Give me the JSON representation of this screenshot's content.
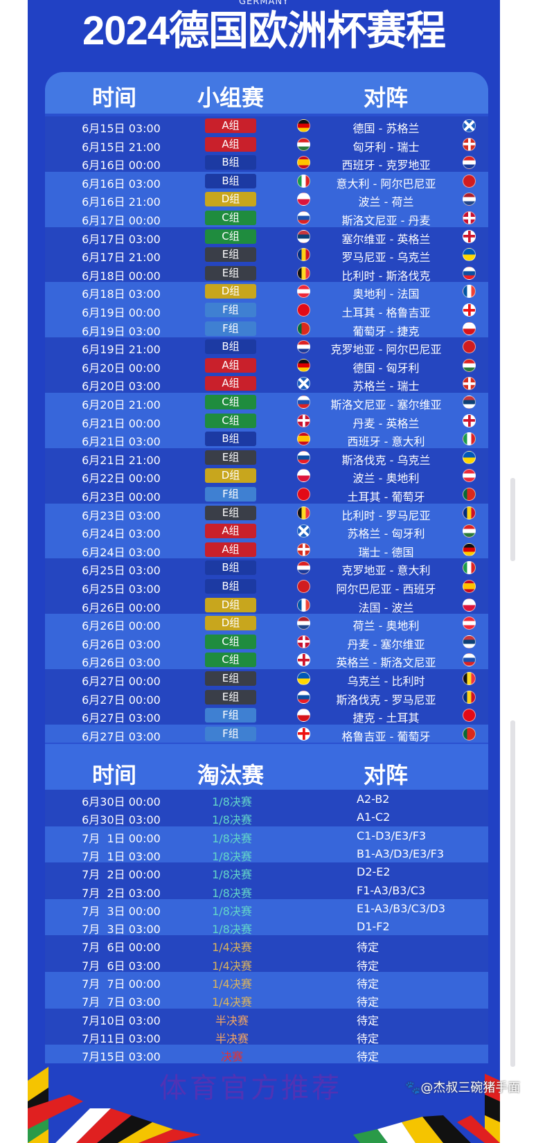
{
  "header": {
    "subtitle": "GERMANY",
    "title": "2024德国欧洲杯赛程"
  },
  "group_table": {
    "headers": [
      "时间",
      "小组赛",
      "对阵"
    ]
  },
  "group_colors": {
    "A组": "#c9202b",
    "B组": "#1c3aa3",
    "C组": "#1f8c3e",
    "D组": "#c8a61d",
    "E组": "#3a3e48",
    "F组": "#3f80d2"
  },
  "group_matches": [
    {
      "time": "6月15日 03:00",
      "group": "A组",
      "home": "德国",
      "away": "苏格兰"
    },
    {
      "time": "6月15日 21:00",
      "group": "A组",
      "home": "匈牙利",
      "away": "瑞士"
    },
    {
      "time": "6月16日 00:00",
      "group": "B组",
      "home": "西班牙",
      "away": "克罗地亚"
    },
    {
      "time": "6月16日 03:00",
      "group": "B组",
      "home": "意大利",
      "away": "阿尔巴尼亚"
    },
    {
      "time": "6月16日 21:00",
      "group": "D组",
      "home": "波兰",
      "away": "荷兰"
    },
    {
      "time": "6月17日 00:00",
      "group": "C组",
      "home": "斯洛文尼亚",
      "away": "丹麦"
    },
    {
      "time": "6月17日 03:00",
      "group": "C组",
      "home": "塞尔维亚",
      "away": "英格兰"
    },
    {
      "time": "6月17日 21:00",
      "group": "E组",
      "home": "罗马尼亚",
      "away": "乌克兰"
    },
    {
      "time": "6月18日 00:00",
      "group": "E组",
      "home": "比利时",
      "away": "斯洛伐克"
    },
    {
      "time": "6月18日 03:00",
      "group": "D组",
      "home": "奥地利",
      "away": "法国"
    },
    {
      "time": "6月19日 00:00",
      "group": "F组",
      "home": "土耳其",
      "away": "格鲁吉亚"
    },
    {
      "time": "6月19日 03:00",
      "group": "F组",
      "home": "葡萄牙",
      "away": "捷克"
    },
    {
      "time": "6月19日 21:00",
      "group": "B组",
      "home": "克罗地亚",
      "away": "阿尔巴尼亚"
    },
    {
      "time": "6月20日 00:00",
      "group": "A组",
      "home": "德国",
      "away": "匈牙利"
    },
    {
      "time": "6月20日 03:00",
      "group": "A组",
      "home": "苏格兰",
      "away": "瑞士"
    },
    {
      "time": "6月20日 21:00",
      "group": "C组",
      "home": "斯洛文尼亚",
      "away": "塞尔维亚"
    },
    {
      "time": "6月21日 00:00",
      "group": "C组",
      "home": "丹麦",
      "away": "英格兰"
    },
    {
      "time": "6月21日 03:00",
      "group": "B组",
      "home": "西班牙",
      "away": "意大利"
    },
    {
      "time": "6月21日 21:00",
      "group": "E组",
      "home": "斯洛伐克",
      "away": "乌克兰"
    },
    {
      "time": "6月22日 00:00",
      "group": "D组",
      "home": "波兰",
      "away": "奥地利"
    },
    {
      "time": "6月23日 00:00",
      "group": "F组",
      "home": "土耳其",
      "away": "葡萄牙"
    },
    {
      "time": "6月23日 03:00",
      "group": "E组",
      "home": "比利时",
      "away": "罗马尼亚"
    },
    {
      "time": "6月24日 03:00",
      "group": "A组",
      "home": "苏格兰",
      "away": "匈牙利"
    },
    {
      "time": "6月24日 03:00",
      "group": "A组",
      "home": "瑞士",
      "away": "德国"
    },
    {
      "time": "6月25日 03:00",
      "group": "B组",
      "home": "克罗地亚",
      "away": "意大利"
    },
    {
      "time": "6月25日 03:00",
      "group": "B组",
      "home": "阿尔巴尼亚",
      "away": "西班牙"
    },
    {
      "time": "6月26日 00:00",
      "group": "D组",
      "home": "法国",
      "away": "波兰"
    },
    {
      "time": "6月26日 00:00",
      "group": "D组",
      "home": "荷兰",
      "away": "奥地利"
    },
    {
      "time": "6月26日 03:00",
      "group": "C组",
      "home": "丹麦",
      "away": "塞尔维亚"
    },
    {
      "time": "6月26日 03:00",
      "group": "C组",
      "home": "英格兰",
      "away": "斯洛文尼亚"
    },
    {
      "time": "6月27日 00:00",
      "group": "E组",
      "home": "乌克兰",
      "away": "比利时"
    },
    {
      "time": "6月27日 00:00",
      "group": "E组",
      "home": "斯洛伐克",
      "away": "罗马尼亚"
    },
    {
      "time": "6月27日 03:00",
      "group": "F组",
      "home": "捷克",
      "away": "土耳其"
    },
    {
      "time": "6月27日 03:00",
      "group": "F组",
      "home": "格鲁吉亚",
      "away": "葡萄牙"
    }
  ],
  "knockout_table": {
    "headers": [
      "时间",
      "淘汰赛",
      "对阵"
    ]
  },
  "stage_colors": {
    "1/8决赛": "#63d6c9",
    "1/4决赛": "#dcb45c",
    "半决赛": "#f2a462",
    "决赛": "#e33131"
  },
  "knockout_matches": [
    {
      "time": "6月30日 00:00",
      "stage": "1/8决赛",
      "match": "A2-B2"
    },
    {
      "time": "6月30日 03:00",
      "stage": "1/8决赛",
      "match": "A1-C2"
    },
    {
      "time": "7月  1日 00:00",
      "stage": "1/8决赛",
      "match": "C1-D3/E3/F3"
    },
    {
      "time": "7月  1日 03:00",
      "stage": "1/8决赛",
      "match": "B1-A3/D3/E3/F3"
    },
    {
      "time": "7月  2日 00:00",
      "stage": "1/8决赛",
      "match": "D2-E2"
    },
    {
      "time": "7月  2日 03:00",
      "stage": "1/8决赛",
      "match": "F1-A3/B3/C3"
    },
    {
      "time": "7月  3日 00:00",
      "stage": "1/8决赛",
      "match": "E1-A3/B3/C3/D3"
    },
    {
      "time": "7月  3日 03:00",
      "stage": "1/8决赛",
      "match": "D1-F2"
    },
    {
      "time": "7月  6日 00:00",
      "stage": "1/4决赛",
      "match": "待定"
    },
    {
      "time": "7月  6日 03:00",
      "stage": "1/4决赛",
      "match": "待定"
    },
    {
      "time": "7月  7日 00:00",
      "stage": "1/4决赛",
      "match": "待定"
    },
    {
      "time": "7月  7日 03:00",
      "stage": "1/4决赛",
      "match": "待定"
    },
    {
      "time": "7月10日 03:00",
      "stage": "半决赛",
      "match": "待定"
    },
    {
      "time": "7月11日 03:00",
      "stage": "半决赛",
      "match": "待定"
    },
    {
      "time": "7月15日 03:00",
      "stage": "决赛",
      "match": "待定"
    }
  ],
  "flags": {
    "德国": {
      "dir": "h",
      "colors": [
        "#111",
        "#d00",
        "#fc0"
      ]
    },
    "苏格兰": {
      "dir": "x",
      "colors": [
        "#1c5fbf",
        "#fff"
      ]
    },
    "匈牙利": {
      "dir": "h",
      "colors": [
        "#d22",
        "#fff",
        "#2a7a3a"
      ]
    },
    "瑞士": {
      "dir": "c",
      "colors": [
        "#d52b1e",
        "#fff"
      ]
    },
    "西班牙": {
      "dir": "h",
      "colors": [
        "#c60b1e",
        "#ffc400",
        "#ffc400",
        "#c60b1e"
      ]
    },
    "克罗地亚": {
      "dir": "h",
      "colors": [
        "#d22",
        "#fff",
        "#1a3a9a"
      ]
    },
    "意大利": {
      "dir": "v",
      "colors": [
        "#1a9a4a",
        "#fff",
        "#d22"
      ]
    },
    "阿尔巴尼亚": {
      "dir": "h",
      "colors": [
        "#d01c1f",
        "#d01c1f"
      ]
    },
    "波兰": {
      "dir": "h",
      "colors": [
        "#fff",
        "#dc143c"
      ]
    },
    "荷兰": {
      "dir": "h",
      "colors": [
        "#ae1c28",
        "#fff",
        "#21468b"
      ]
    },
    "斯洛文尼亚": {
      "dir": "h",
      "colors": [
        "#fff",
        "#1a50b0",
        "#d22"
      ]
    },
    "丹麦": {
      "dir": "c",
      "colors": [
        "#c8102e",
        "#fff"
      ]
    },
    "塞尔维亚": {
      "dir": "h",
      "colors": [
        "#c6363c",
        "#0c4076",
        "#fff"
      ]
    },
    "英格兰": {
      "dir": "c",
      "colors": [
        "#fff",
        "#cf142b"
      ]
    },
    "罗马尼亚": {
      "dir": "v",
      "colors": [
        "#002b7f",
        "#fcd116",
        "#ce1126"
      ]
    },
    "乌克兰": {
      "dir": "h",
      "colors": [
        "#0057b7",
        "#ffd700"
      ]
    },
    "比利时": {
      "dir": "v",
      "colors": [
        "#111",
        "#fdda24",
        "#ef3340"
      ]
    },
    "斯洛伐克": {
      "dir": "h",
      "colors": [
        "#fff",
        "#0b4ea2",
        "#ee1c25"
      ]
    },
    "奥地利": {
      "dir": "h",
      "colors": [
        "#ed2939",
        "#fff",
        "#ed2939"
      ]
    },
    "法国": {
      "dir": "v",
      "colors": [
        "#0055a4",
        "#fff",
        "#ef4135"
      ]
    },
    "土耳其": {
      "dir": "h",
      "colors": [
        "#e30a17",
        "#e30a17"
      ]
    },
    "格鲁吉亚": {
      "dir": "c",
      "colors": [
        "#fff",
        "#e11"
      ]
    },
    "葡萄牙": {
      "dir": "v",
      "colors": [
        "#046a38",
        "#da291c",
        "#da291c"
      ]
    },
    "捷克": {
      "dir": "h",
      "colors": [
        "#fff",
        "#d7141a"
      ]
    }
  },
  "watermark": "体育官方推荐",
  "credit": "@杰叔三碗猪手面"
}
